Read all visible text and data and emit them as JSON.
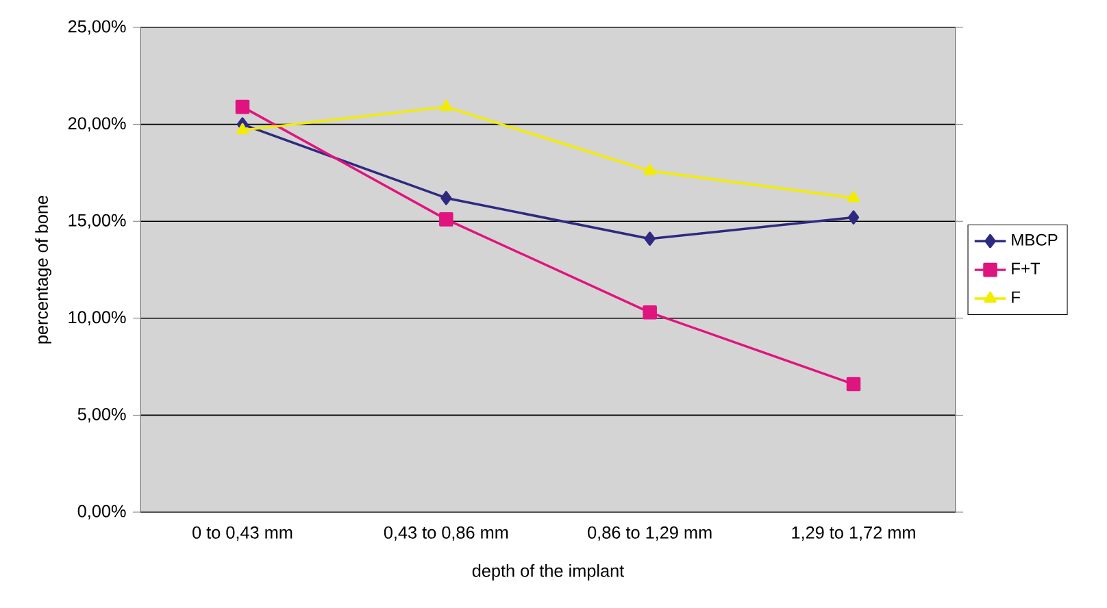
{
  "chart_data": {
    "type": "line",
    "xlabel": "depth of the implant",
    "ylabel": "percentage of bone",
    "categories": [
      "0 to 0,43 mm",
      "0,43 to 0,86 mm",
      "0,86 to 1,29 mm",
      "1,29 to 1,72 mm"
    ],
    "series": [
      {
        "name": "MBCP",
        "color": "#2e2a80",
        "marker": "diamond",
        "values": [
          20.0,
          16.2,
          14.1,
          15.2
        ]
      },
      {
        "name": "F+T",
        "color": "#e0147f",
        "marker": "square",
        "values": [
          20.9,
          15.1,
          10.3,
          6.6
        ]
      },
      {
        "name": "F",
        "color": "#f2ec00",
        "marker": "triangle",
        "values": [
          19.7,
          20.9,
          17.6,
          16.2
        ]
      }
    ],
    "ylim": [
      0,
      25
    ],
    "yticks": [
      {
        "value": 0,
        "label": "0,00%"
      },
      {
        "value": 5,
        "label": "5,00%"
      },
      {
        "value": 10,
        "label": "10,00%"
      },
      {
        "value": 15,
        "label": "15,00%"
      },
      {
        "value": 20,
        "label": "20,00%"
      },
      {
        "value": 25,
        "label": "25,00%"
      }
    ],
    "grid": "y",
    "legend": "right"
  }
}
